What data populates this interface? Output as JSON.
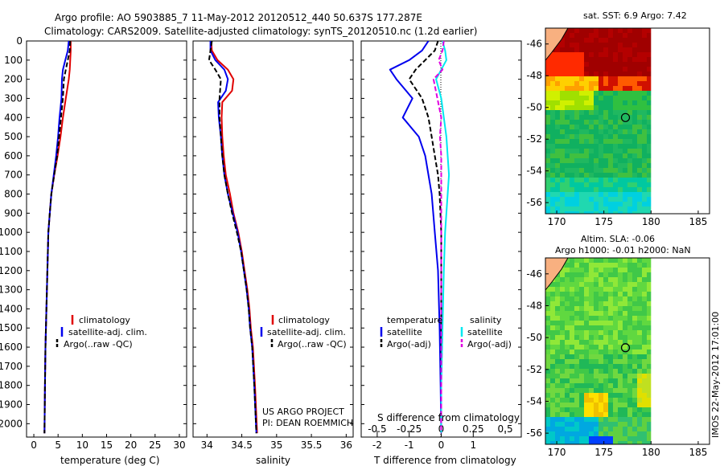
{
  "header": {
    "line1": "Argo profile: AO 5903885_7 11-May-2012 20120512_440 50.637S 177.287E",
    "line2": "Climatology: CARS2009. Satellite-adjusted climatology: synTS_20120510.nc (1.2d earlier)"
  },
  "footer_left": {
    "line1": "US ARGO PROJECT",
    "line2": "PI: DEAN ROEMMICH"
  },
  "side_label": "IMOS 22-May-2012 17:01:00",
  "colors": {
    "red": "#e00000",
    "blue": "#0000ee",
    "black": "#000000",
    "cyan": "#00e8f0",
    "magenta": "#e000e0"
  },
  "chart_data": [
    {
      "id": "temperature",
      "type": "line",
      "xlabel": "temperature (deg C)",
      "ylabel": "",
      "xlim": [
        -1.5,
        31.5
      ],
      "ylim": [
        0,
        2070
      ],
      "y_reversed": true,
      "x_ticks": [
        0,
        5,
        10,
        15,
        20,
        25,
        30
      ],
      "y_ticks": [
        0,
        100,
        200,
        300,
        400,
        500,
        600,
        700,
        800,
        900,
        1000,
        1100,
        1200,
        1300,
        1400,
        1500,
        1600,
        1700,
        1800,
        1900,
        2000
      ],
      "legend": {
        "position": "lower-middle",
        "entries": [
          "climatology",
          "satellite-adj. clim.",
          "Argo(..raw -QC)"
        ]
      },
      "series": [
        {
          "name": "climatology",
          "color": "red",
          "dash": false,
          "points": [
            [
              7.6,
              0
            ],
            [
              7.6,
              50
            ],
            [
              7.5,
              100
            ],
            [
              7.4,
              150
            ],
            [
              7.2,
              200
            ],
            [
              6.6,
              300
            ],
            [
              6.0,
              400
            ],
            [
              5.5,
              500
            ],
            [
              4.9,
              600
            ],
            [
              4.2,
              700
            ],
            [
              3.6,
              800
            ],
            [
              3.3,
              900
            ],
            [
              3.0,
              1000
            ],
            [
              2.9,
              1100
            ],
            [
              2.8,
              1200
            ],
            [
              2.7,
              1300
            ],
            [
              2.6,
              1400
            ],
            [
              2.5,
              1500
            ],
            [
              2.4,
              1600
            ],
            [
              2.3,
              1800
            ],
            [
              2.2,
              2050
            ]
          ]
        },
        {
          "name": "satellite-adj. clim.",
          "color": "blue",
          "dash": false,
          "points": [
            [
              7.2,
              0
            ],
            [
              7.0,
              50
            ],
            [
              6.5,
              100
            ],
            [
              6.0,
              150
            ],
            [
              5.8,
              200
            ],
            [
              5.7,
              300
            ],
            [
              5.3,
              400
            ],
            [
              5.0,
              500
            ],
            [
              4.6,
              600
            ],
            [
              4.1,
              700
            ],
            [
              3.6,
              800
            ],
            [
              3.3,
              900
            ],
            [
              3.0,
              1000
            ],
            [
              2.9,
              1100
            ],
            [
              2.8,
              1200
            ],
            [
              2.7,
              1300
            ],
            [
              2.6,
              1400
            ],
            [
              2.5,
              1500
            ],
            [
              2.4,
              1600
            ],
            [
              2.3,
              1800
            ],
            [
              2.2,
              2050
            ]
          ]
        },
        {
          "name": "Argo(..raw -QC)",
          "color": "black",
          "dash": true,
          "points": [
            [
              7.5,
              0
            ],
            [
              7.4,
              50
            ],
            [
              7.0,
              100
            ],
            [
              6.6,
              150
            ],
            [
              6.2,
              200
            ],
            [
              6.0,
              300
            ],
            [
              5.6,
              400
            ],
            [
              5.2,
              500
            ],
            [
              4.8,
              600
            ],
            [
              4.2,
              700
            ],
            [
              3.6,
              800
            ],
            [
              3.3,
              900
            ],
            [
              3.0,
              1000
            ],
            [
              2.9,
              1100
            ],
            [
              2.8,
              1200
            ],
            [
              2.7,
              1300
            ],
            [
              2.6,
              1400
            ],
            [
              2.5,
              1500
            ],
            [
              2.4,
              1600
            ],
            [
              2.3,
              1800
            ],
            [
              2.2,
              2050
            ]
          ]
        }
      ]
    },
    {
      "id": "salinity",
      "type": "line",
      "xlabel": "salinity",
      "ylabel": "",
      "xlim": [
        33.8,
        36.1
      ],
      "ylim": [
        0,
        2070
      ],
      "y_reversed": true,
      "x_ticks": [
        34,
        34.5,
        35,
        35.5,
        36
      ],
      "y_ticks": [],
      "legend": {
        "position": "lower-middle",
        "entries": [
          "climatology",
          "satellite-adj. clim.",
          "Argo(..raw -QC)"
        ]
      },
      "series": [
        {
          "name": "climatology",
          "color": "red",
          "dash": false,
          "points": [
            [
              34.06,
              0
            ],
            [
              34.07,
              50
            ],
            [
              34.15,
              100
            ],
            [
              34.3,
              150
            ],
            [
              34.38,
              200
            ],
            [
              34.36,
              260
            ],
            [
              34.22,
              320
            ],
            [
              34.21,
              400
            ],
            [
              34.22,
              500
            ],
            [
              34.24,
              600
            ],
            [
              34.27,
              700
            ],
            [
              34.33,
              800
            ],
            [
              34.38,
              900
            ],
            [
              34.45,
              1000
            ],
            [
              34.5,
              1100
            ],
            [
              34.54,
              1200
            ],
            [
              34.58,
              1300
            ],
            [
              34.61,
              1400
            ],
            [
              34.63,
              1500
            ],
            [
              34.66,
              1600
            ],
            [
              34.69,
              1800
            ],
            [
              34.72,
              2050
            ]
          ]
        },
        {
          "name": "satellite-adj. clim.",
          "color": "blue",
          "dash": false,
          "points": [
            [
              34.05,
              0
            ],
            [
              34.05,
              50
            ],
            [
              34.12,
              100
            ],
            [
              34.25,
              150
            ],
            [
              34.3,
              200
            ],
            [
              34.27,
              260
            ],
            [
              34.16,
              320
            ],
            [
              34.17,
              400
            ],
            [
              34.2,
              500
            ],
            [
              34.22,
              600
            ],
            [
              34.25,
              700
            ],
            [
              34.3,
              800
            ],
            [
              34.37,
              900
            ],
            [
              34.44,
              1000
            ],
            [
              34.49,
              1100
            ],
            [
              34.53,
              1200
            ],
            [
              34.57,
              1300
            ],
            [
              34.6,
              1400
            ],
            [
              34.62,
              1500
            ],
            [
              34.65,
              1600
            ],
            [
              34.68,
              1800
            ],
            [
              34.71,
              2050
            ]
          ]
        },
        {
          "name": "Argo(..raw -QC)",
          "color": "black",
          "dash": true,
          "points": [
            [
              34.07,
              0
            ],
            [
              34.05,
              50
            ],
            [
              34.03,
              100
            ],
            [
              34.12,
              150
            ],
            [
              34.2,
              200
            ],
            [
              34.18,
              300
            ],
            [
              34.18,
              400
            ],
            [
              34.2,
              500
            ],
            [
              34.22,
              600
            ],
            [
              34.25,
              700
            ],
            [
              34.3,
              800
            ],
            [
              34.36,
              900
            ],
            [
              34.43,
              1000
            ],
            [
              34.49,
              1100
            ],
            [
              34.53,
              1200
            ],
            [
              34.57,
              1300
            ],
            [
              34.6,
              1400
            ],
            [
              34.62,
              1500
            ],
            [
              34.65,
              1600
            ],
            [
              34.68,
              1800
            ],
            [
              34.71,
              2050
            ]
          ]
        }
      ]
    },
    {
      "id": "differences",
      "type": "line",
      "xlabel": "T difference from climatology",
      "x2label": "S difference from climatology",
      "ylabel": "",
      "xlim": [
        -2.5,
        2.5
      ],
      "x2lim": [
        -0.625,
        0.625
      ],
      "ylim": [
        0,
        2070
      ],
      "y_reversed": true,
      "x_ticks": [
        -2,
        -1,
        0,
        1
      ],
      "x_tick_labels": [
        "-2",
        "-1",
        "0",
        "1"
      ],
      "x2_ticks": [
        -0.5,
        -0.25,
        0,
        0.25,
        0.5
      ],
      "x2_tick_labels": [
        "-0.5",
        "-0.25",
        "0",
        "0.25",
        "0.5"
      ],
      "legend": {
        "position": "lower-middle",
        "group1_title": "temperature",
        "group2_title": "salinity",
        "entries": [
          "satellite",
          "Argo(-adj)",
          "satellite",
          "Argo(-adj)"
        ]
      },
      "series": [
        {
          "name": "temperature satellite",
          "color": "blue",
          "dash": false,
          "points": [
            [
              -0.4,
              0
            ],
            [
              -0.6,
              50
            ],
            [
              -1.0,
              100
            ],
            [
              -1.6,
              150
            ],
            [
              -1.4,
              200
            ],
            [
              -0.9,
              300
            ],
            [
              -1.2,
              400
            ],
            [
              -0.7,
              500
            ],
            [
              -0.5,
              600
            ],
            [
              -0.4,
              700
            ],
            [
              -0.3,
              800
            ],
            [
              -0.2,
              1000
            ],
            [
              -0.1,
              1200
            ],
            [
              -0.05,
              1500
            ],
            [
              -0.02,
              1800
            ],
            [
              0,
              2050
            ]
          ]
        },
        {
          "name": "temperature Argo(-adj)",
          "color": "black",
          "dash": true,
          "points": [
            [
              -0.1,
              0
            ],
            [
              -0.2,
              50
            ],
            [
              -0.5,
              100
            ],
            [
              -0.8,
              150
            ],
            [
              -1.0,
              200
            ],
            [
              -0.6,
              300
            ],
            [
              -0.4,
              400
            ],
            [
              -0.3,
              500
            ],
            [
              -0.2,
              600
            ],
            [
              -0.1,
              700
            ],
            [
              -0.05,
              800
            ],
            [
              0,
              1000
            ],
            [
              0,
              2050
            ]
          ]
        },
        {
          "name": "salinity satellite",
          "color": "cyan",
          "dash": false,
          "points": [
            [
              0.01,
              0
            ],
            [
              0.03,
              50
            ],
            [
              0.04,
              100
            ],
            [
              0.0,
              150
            ],
            [
              -0.04,
              200
            ],
            [
              0.0,
              300
            ],
            [
              0.02,
              400
            ],
            [
              0.04,
              500
            ],
            [
              0.05,
              600
            ],
            [
              0.06,
              700
            ],
            [
              0.05,
              800
            ],
            [
              0.04,
              900
            ],
            [
              0.03,
              1000
            ],
            [
              0.02,
              1200
            ],
            [
              0.01,
              1500
            ],
            [
              0,
              1800
            ],
            [
              0,
              2050
            ]
          ]
        },
        {
          "name": "salinity Argo(-adj)",
          "color": "magenta",
          "dash": true,
          "points": [
            [
              0.02,
              0
            ],
            [
              0.01,
              50
            ],
            [
              -0.02,
              100
            ],
            [
              0.01,
              150
            ],
            [
              -0.06,
              200
            ],
            [
              -0.03,
              300
            ],
            [
              0.0,
              400
            ],
            [
              -0.01,
              500
            ],
            [
              0.0,
              600
            ],
            [
              0.0,
              1000
            ],
            [
              0,
              2050
            ]
          ]
        }
      ]
    }
  ],
  "maps": [
    {
      "id": "sst-map",
      "title": "sat. SST: 6.9 Argo: 7.42",
      "title2": "",
      "x_ticks": [
        170,
        175,
        180,
        185
      ],
      "y_ticks": [
        -46,
        -48,
        -50,
        -52,
        -54,
        -56
      ],
      "xlim": [
        168.8,
        186.2
      ],
      "ylim": [
        -56.7,
        -45
      ],
      "data_extent": {
        "lon": [
          168.8,
          180
        ],
        "lat": [
          -56.7,
          -45
        ]
      },
      "float_position": {
        "lon": 177.287,
        "lat": -50.637
      }
    },
    {
      "id": "sla-map",
      "title": "Altim. SLA: -0.06",
      "title2": "Argo h1000: -0.01 h2000: NaN",
      "x_ticks": [
        170,
        175,
        180,
        185
      ],
      "y_ticks": [
        -46,
        -48,
        -50,
        -52,
        -54,
        -56
      ],
      "xlim": [
        168.8,
        186.2
      ],
      "ylim": [
        -56.7,
        -45
      ],
      "data_extent": {
        "lon": [
          168.8,
          180
        ],
        "lat": [
          -56.7,
          -45
        ]
      },
      "float_position": {
        "lon": 177.287,
        "lat": -50.637
      }
    }
  ]
}
